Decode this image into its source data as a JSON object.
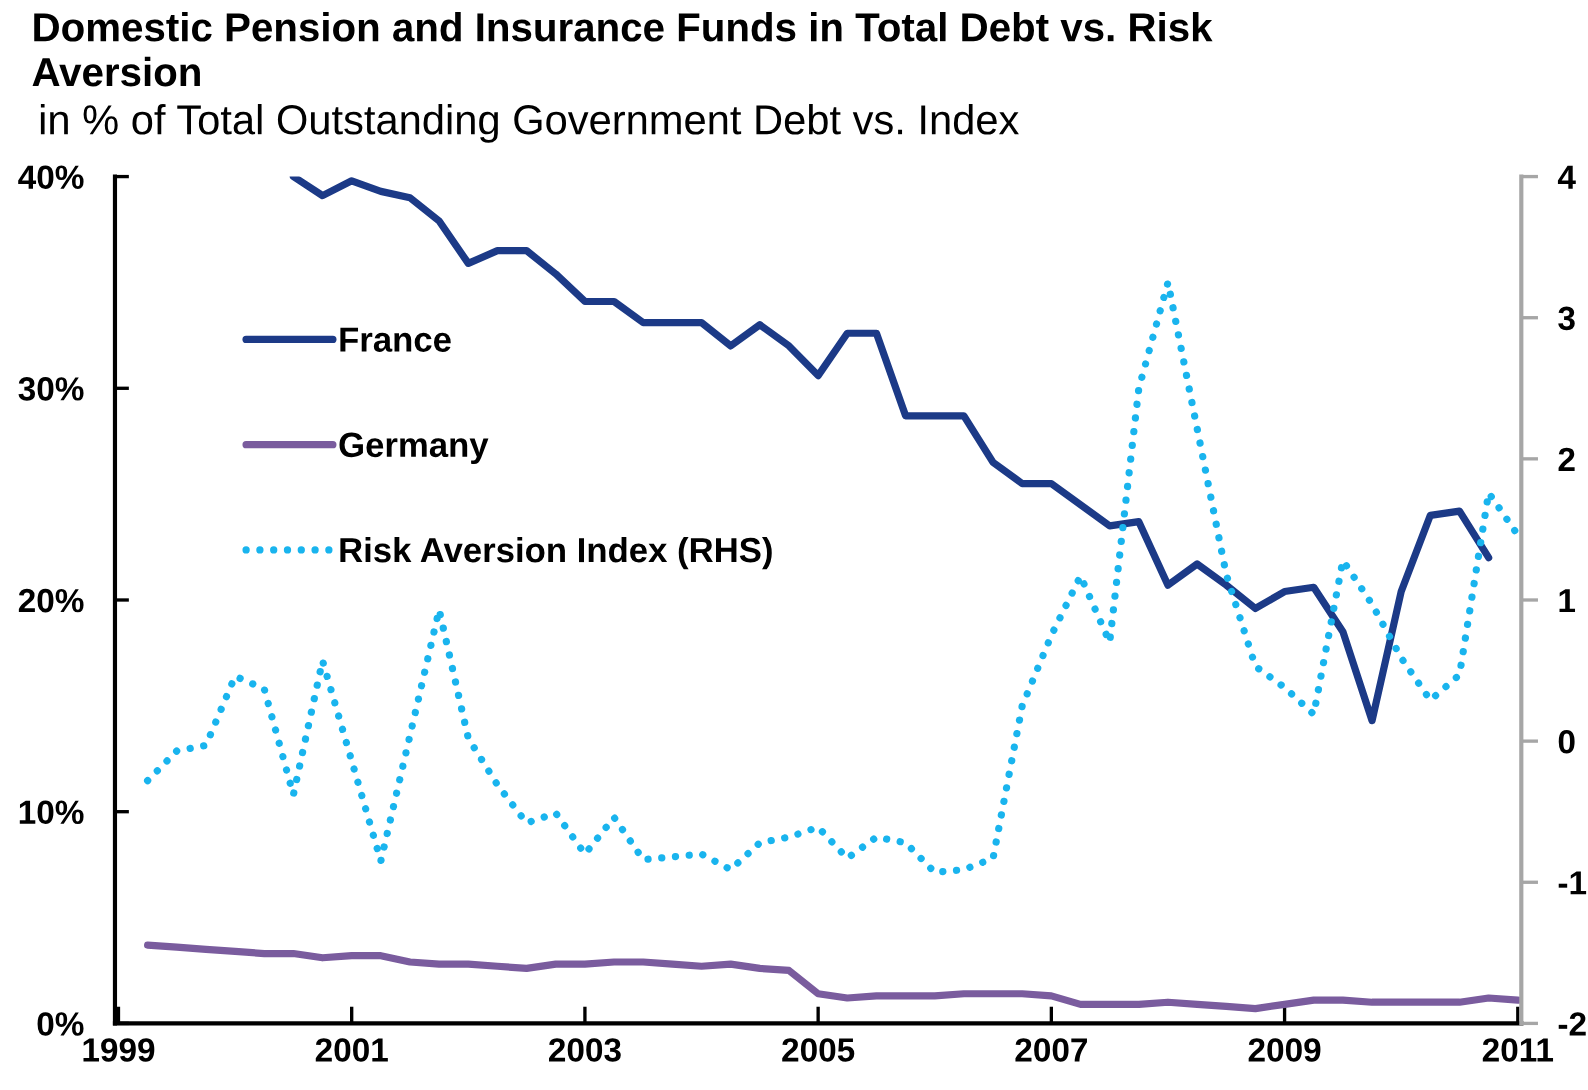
{
  "chart_data": {
    "type": "line",
    "title": "Domestic Pension and Insurance Funds in Total Debt vs. Risk Aversion",
    "subtitle": "in % of Total Outstanding Government Debt vs. Index",
    "xlim": [
      1998.97,
      2011.03
    ],
    "xticks": [
      1999,
      2001,
      2003,
      2005,
      2007,
      2009,
      2011
    ],
    "ylim": [
      0,
      40
    ],
    "yticks": [
      {
        "value": 0,
        "label": "0%"
      },
      {
        "value": 10,
        "label": "10%"
      },
      {
        "value": 20,
        "label": "20%"
      },
      {
        "value": 30,
        "label": "30%"
      },
      {
        "value": 40,
        "label": "40%"
      }
    ],
    "y2lim": [
      -2,
      4
    ],
    "y2ticks": [
      -2,
      -1,
      0,
      1,
      2,
      3,
      4
    ],
    "legend": "top left",
    "grid": false,
    "series": [
      {
        "name": "France",
        "color": "#1c3a87",
        "line_style": "solid",
        "x": [
          2000.5,
          2000.75,
          2001,
          2001.25,
          2001.5,
          2001.75,
          2002,
          2002.25,
          2002.5,
          2002.75,
          2003,
          2003.25,
          2003.5,
          2003.75,
          2004,
          2004.25,
          2004.5,
          2004.75,
          2005,
          2005.25,
          2005.5,
          2005.75,
          2006,
          2006.25,
          2006.5,
          2006.75,
          2007,
          2007.5,
          2007.75,
          2008,
          2008.25,
          2008.5,
          2008.75,
          2009,
          2009.25,
          2009.5,
          2009.75,
          2010,
          2010.25,
          2010.5,
          2010.75
        ],
        "values": [
          40.0,
          39.1,
          39.8,
          39.3,
          39.0,
          37.9,
          35.9,
          36.5,
          36.5,
          35.4,
          34.1,
          34.1,
          33.1,
          33.1,
          33.1,
          32.0,
          33.0,
          32.0,
          30.6,
          32.6,
          32.6,
          28.7,
          28.7,
          28.7,
          26.5,
          25.5,
          25.5,
          23.5,
          23.7,
          20.7,
          21.7,
          20.7,
          19.6,
          20.4,
          20.6,
          18.5,
          14.3,
          20.4,
          24.0,
          24.2,
          22.0
        ]
      },
      {
        "name": "Germany",
        "color": "#7a5c9e",
        "line_style": "solid",
        "x": [
          1999.25,
          1999.5,
          1999.75,
          2000,
          2000.25,
          2000.5,
          2000.75,
          2001,
          2001.25,
          2001.5,
          2001.75,
          2002,
          2002.25,
          2002.5,
          2002.75,
          2003,
          2003.25,
          2003.5,
          2003.75,
          2004,
          2004.25,
          2004.5,
          2004.75,
          2005,
          2005.25,
          2005.5,
          2005.75,
          2006,
          2006.25,
          2006.5,
          2006.75,
          2007,
          2007.25,
          2007.5,
          2007.75,
          2008,
          2008.25,
          2008.5,
          2008.75,
          2009,
          2009.25,
          2009.5,
          2009.75,
          2010,
          2010.25,
          2010.5,
          2010.75,
          2011
        ],
        "values": [
          3.7,
          3.6,
          3.5,
          3.4,
          3.3,
          3.3,
          3.1,
          3.2,
          3.2,
          2.9,
          2.8,
          2.8,
          2.7,
          2.6,
          2.8,
          2.8,
          2.9,
          2.9,
          2.8,
          2.7,
          2.8,
          2.6,
          2.5,
          1.4,
          1.2,
          1.3,
          1.3,
          1.3,
          1.4,
          1.4,
          1.4,
          1.3,
          0.9,
          0.9,
          0.9,
          1.0,
          0.9,
          0.8,
          0.7,
          0.9,
          1.1,
          1.1,
          1.0,
          1.0,
          1.0,
          1.0,
          1.2,
          1.1
        ]
      },
      {
        "name": "Risk Aversion Index (RHS)",
        "color": "#19b4ee",
        "line_style": "dotted",
        "axis": "y2",
        "x": [
          1999.25,
          1999.5,
          1999.75,
          2000,
          2000.25,
          2000.5,
          2000.75,
          2001.25,
          2001.75,
          2002,
          2002.25,
          2002.5,
          2002.75,
          2003,
          2003.25,
          2003.5,
          2004,
          2004.25,
          2004.5,
          2004.75,
          2005,
          2005.25,
          2005.5,
          2005.75,
          2006,
          2006.25,
          2006.5,
          2006.75,
          2007,
          2007.25,
          2007.5,
          2007.75,
          2008,
          2008.5,
          2008.75,
          2009,
          2009.25,
          2009.5,
          2009.75,
          2010,
          2010.25,
          2010.5,
          2010.75,
          2011
        ],
        "values": [
          -0.28,
          -0.07,
          -0.03,
          0.46,
          0.37,
          -0.38,
          0.57,
          -0.85,
          0.93,
          0.02,
          -0.31,
          -0.58,
          -0.51,
          -0.8,
          -0.54,
          -0.84,
          -0.8,
          -0.91,
          -0.72,
          -0.68,
          -0.61,
          -0.83,
          -0.68,
          -0.72,
          -0.93,
          -0.91,
          -0.83,
          0.25,
          0.75,
          1.17,
          0.7,
          2.5,
          3.25,
          1.18,
          0.53,
          0.38,
          0.19,
          1.28,
          0.97,
          0.59,
          0.29,
          0.47,
          1.76,
          1.46
        ]
      }
    ]
  }
}
